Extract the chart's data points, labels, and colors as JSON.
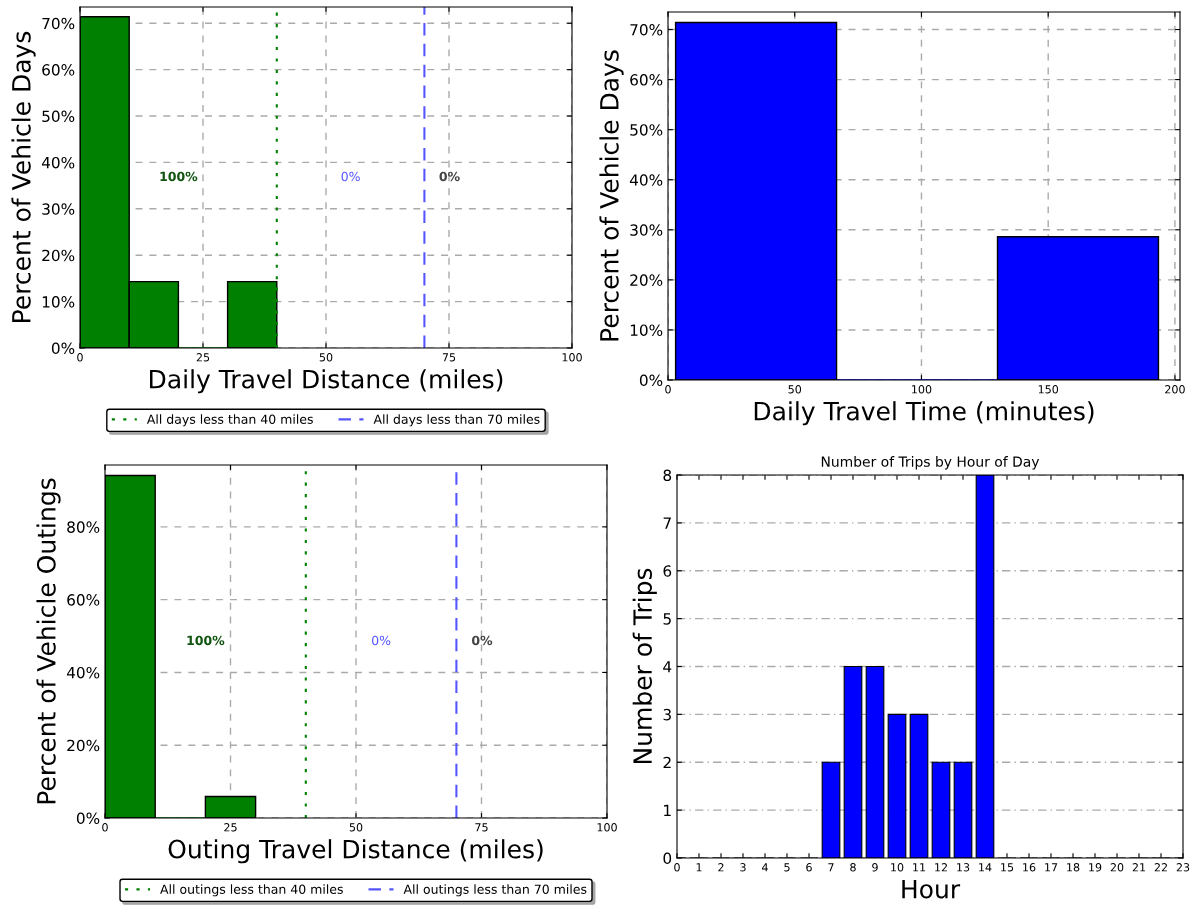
{
  "chart_data": [
    {
      "type": "histogram",
      "xlabel": "Daily Travel Distance (miles)",
      "ylabel": "Percent of Vehicle Days",
      "bins": [
        0,
        10,
        20,
        30,
        40
      ],
      "values": [
        71.4,
        14.3,
        0,
        14.3
      ],
      "color": "#008000",
      "xlim": [
        0,
        100
      ],
      "xticks": [
        0,
        25,
        50,
        75,
        100
      ],
      "ylim": [
        0,
        73.5
      ],
      "yticks": [
        {
          "value": 0,
          "label": "0%"
        },
        {
          "value": 10,
          "label": "10%"
        },
        {
          "value": 20,
          "label": "20%"
        },
        {
          "value": 30,
          "label": "30%"
        },
        {
          "value": 40,
          "label": "40%"
        },
        {
          "value": 50,
          "label": "50%"
        },
        {
          "value": 60,
          "label": "60%"
        },
        {
          "value": 70,
          "label": "70%"
        }
      ],
      "grid": true,
      "legend": "bottom",
      "ref_lines": [
        {
          "axis": "x",
          "value": 40,
          "label": "All days less than 40 miles",
          "color": "#008000",
          "line_style": "dotted"
        },
        {
          "axis": "x",
          "value": 70,
          "label": "All days less than 70 miles",
          "color": "#5555ff",
          "line_style": "dashed"
        }
      ],
      "annotations": [
        "100%",
        "0%",
        "0%"
      ]
    },
    {
      "type": "histogram",
      "xlabel": "Daily Travel Time (minutes)",
      "ylabel": "Percent of Vehicle Days",
      "bins": [
        3,
        66.5,
        130,
        193.5
      ],
      "values": [
        71.4,
        0,
        28.6
      ],
      "color": "#0000ff",
      "xlim": [
        0,
        202
      ],
      "xticks": [
        0,
        50,
        100,
        150,
        200
      ],
      "ylim": [
        0,
        73.5
      ],
      "yticks": [
        {
          "value": 0,
          "label": "0%"
        },
        {
          "value": 10,
          "label": "10%"
        },
        {
          "value": 20,
          "label": "20%"
        },
        {
          "value": 30,
          "label": "30%"
        },
        {
          "value": 40,
          "label": "40%"
        },
        {
          "value": 50,
          "label": "50%"
        },
        {
          "value": 60,
          "label": "60%"
        },
        {
          "value": 70,
          "label": "70%"
        }
      ],
      "grid": true
    },
    {
      "type": "histogram",
      "xlabel": "Outing Travel Distance (miles)",
      "ylabel": "Percent of Vehicle Outings",
      "bins": [
        0,
        10,
        20,
        30
      ],
      "values": [
        94.1,
        0,
        5.9
      ],
      "color": "#008000",
      "xlim": [
        0,
        100
      ],
      "xticks": [
        0,
        25,
        50,
        75,
        100
      ],
      "ylim": [
        0,
        97
      ],
      "yticks": [
        {
          "value": 0,
          "label": "0%"
        },
        {
          "value": 20,
          "label": "20%"
        },
        {
          "value": 40,
          "label": "40%"
        },
        {
          "value": 60,
          "label": "60%"
        },
        {
          "value": 80,
          "label": "80%"
        }
      ],
      "grid": true,
      "legend": "bottom",
      "ref_lines": [
        {
          "axis": "x",
          "value": 40,
          "label": "All outings less than 40 miles",
          "color": "#008000",
          "line_style": "dotted"
        },
        {
          "axis": "x",
          "value": 70,
          "label": "All outings less than 70 miles",
          "color": "#5555ff",
          "line_style": "dashed"
        }
      ],
      "annotations": [
        "100%",
        "0%",
        "0%"
      ]
    },
    {
      "type": "bar",
      "title": "Number of Trips by Hour of Day",
      "xlabel": "Hour",
      "ylabel": "Number of Trips",
      "x": [
        0,
        1,
        2,
        3,
        4,
        5,
        6,
        7,
        8,
        9,
        10,
        11,
        12,
        13,
        14,
        15,
        16,
        17,
        18,
        19,
        20,
        21,
        22,
        23
      ],
      "values": [
        0,
        0,
        0,
        0,
        0,
        0,
        0,
        2,
        4,
        4,
        3,
        3,
        2,
        2,
        8,
        0,
        0,
        0,
        0,
        0,
        0,
        0,
        0,
        0
      ],
      "color": "#0000ff",
      "xlim": [
        0,
        23
      ],
      "xticks": [
        0,
        1,
        2,
        3,
        4,
        5,
        6,
        7,
        8,
        9,
        10,
        11,
        12,
        13,
        14,
        15,
        16,
        17,
        18,
        19,
        20,
        21,
        22,
        23
      ],
      "ylim": [
        0,
        8
      ],
      "yticks": [
        0,
        1,
        2,
        3,
        4,
        5,
        6,
        7,
        8
      ],
      "grid": "y"
    }
  ]
}
